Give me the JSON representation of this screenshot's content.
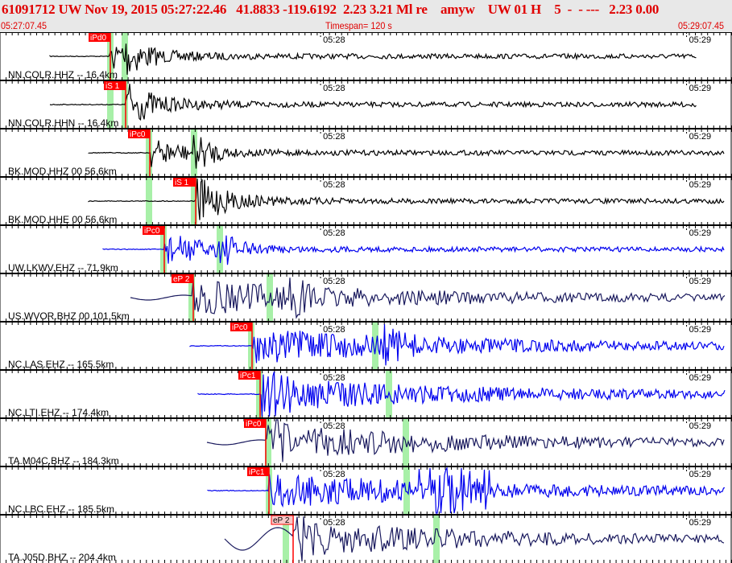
{
  "header": {
    "title": "61091712 UW Nov 19, 2015 05:27:22.46   41.8833 -119.6192  2.23 3.21 Ml re    amyw    UW 01 H    5  -  - ---   2.23 0.00",
    "start_time": "05:27:07.45",
    "timespan": "Timespan= 120 s",
    "end_time": "05:29:07.45"
  },
  "chart_data": {
    "type": "line",
    "title": "",
    "xlim_seconds": [
      0,
      120
    ],
    "minute_labels": [
      "05:28",
      "05:29"
    ],
    "colors": {
      "black": "#000000",
      "blue": "#0000ee",
      "navy": "#1a1a5e",
      "pick": "#ff0000",
      "window": "#a8f0a8"
    },
    "traces": [
      {
        "label": "NN.COLR.HHZ -- 16.4km",
        "pick": "iPd0",
        "color": "black"
      },
      {
        "label": "NN.COLR.HHN -- 16.4km",
        "pick": "iS 1",
        "color": "black"
      },
      {
        "label": "BK.MOD.HHZ 00 56.6km",
        "pick": "iPc0",
        "color": "black"
      },
      {
        "label": "BK.MOD.HHE 00 56.6km",
        "pick": "iS 1",
        "color": "black"
      },
      {
        "label": "UW.LKWV.EHZ -- 71.9km",
        "pick": "iPc0",
        "color": "blue"
      },
      {
        "label": "US.WVOR.BHZ 00 101.5km",
        "pick": "eP 2",
        "color": "navy"
      },
      {
        "label": "NC.LAS.EHZ -- 165.5km",
        "pick": "iPc0",
        "color": "blue"
      },
      {
        "label": "NC.LTI.EHZ -- 174.4km",
        "pick": "iPc1",
        "color": "blue"
      },
      {
        "label": "TA.M04C.BHZ -- 184.3km",
        "pick": "iPc0",
        "color": "navy"
      },
      {
        "label": "NC.LBC.EHZ -- 185.5km",
        "pick": "iPc1",
        "color": "blue"
      },
      {
        "label": "TA.J05D.BHZ -- 204.4km",
        "pick": "eP 2",
        "color": "navy"
      }
    ]
  }
}
